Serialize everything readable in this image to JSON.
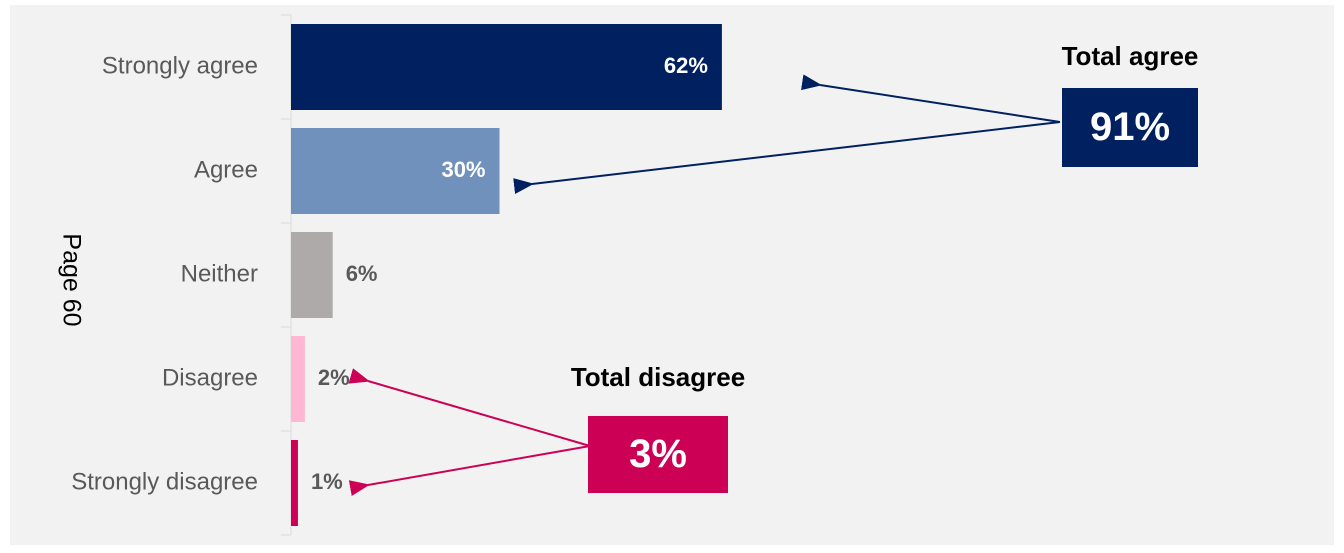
{
  "chart_data": {
    "type": "bar",
    "orientation": "horizontal",
    "categories": [
      "Strongly agree",
      "Agree",
      "Neither",
      "Disagree",
      "Strongly disagree"
    ],
    "values": [
      62,
      30,
      6,
      2,
      1
    ],
    "value_labels": [
      "62%",
      "30%",
      "6%",
      "2%",
      "1%"
    ],
    "colors": [
      "#002060",
      "#6f91bb",
      "#aeaaaa",
      "#ffb7d3",
      "#cc0055"
    ],
    "side_label": "Page 60",
    "annotations": [
      {
        "title": "Total agree",
        "box": "91%",
        "color": "#002060"
      },
      {
        "title": "Total disagree",
        "box": "3%",
        "color": "#cc0055"
      }
    ]
  }
}
